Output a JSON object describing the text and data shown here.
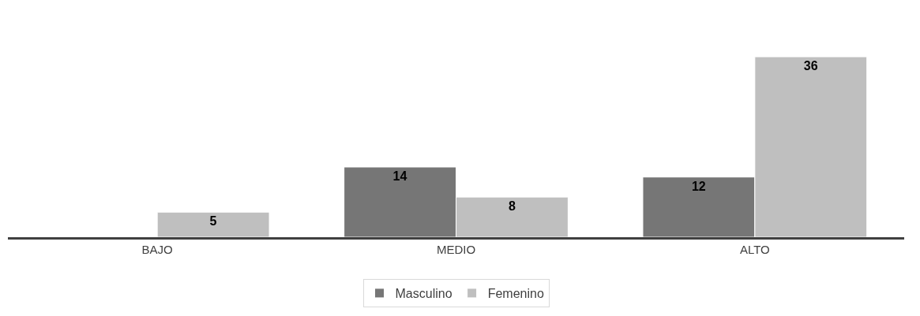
{
  "chart_data": {
    "type": "bar",
    "categories": [
      "BAJO",
      "MEDIO",
      "ALTO"
    ],
    "series": [
      {
        "name": "Masculino",
        "color": "#767676",
        "values": [
          null,
          14,
          12
        ]
      },
      {
        "name": "Femenino",
        "color": "#bfbfbf",
        "values": [
          5,
          8,
          36
        ]
      }
    ],
    "data_labels": true,
    "legend": "bottom",
    "tick_labels": "x"
  }
}
